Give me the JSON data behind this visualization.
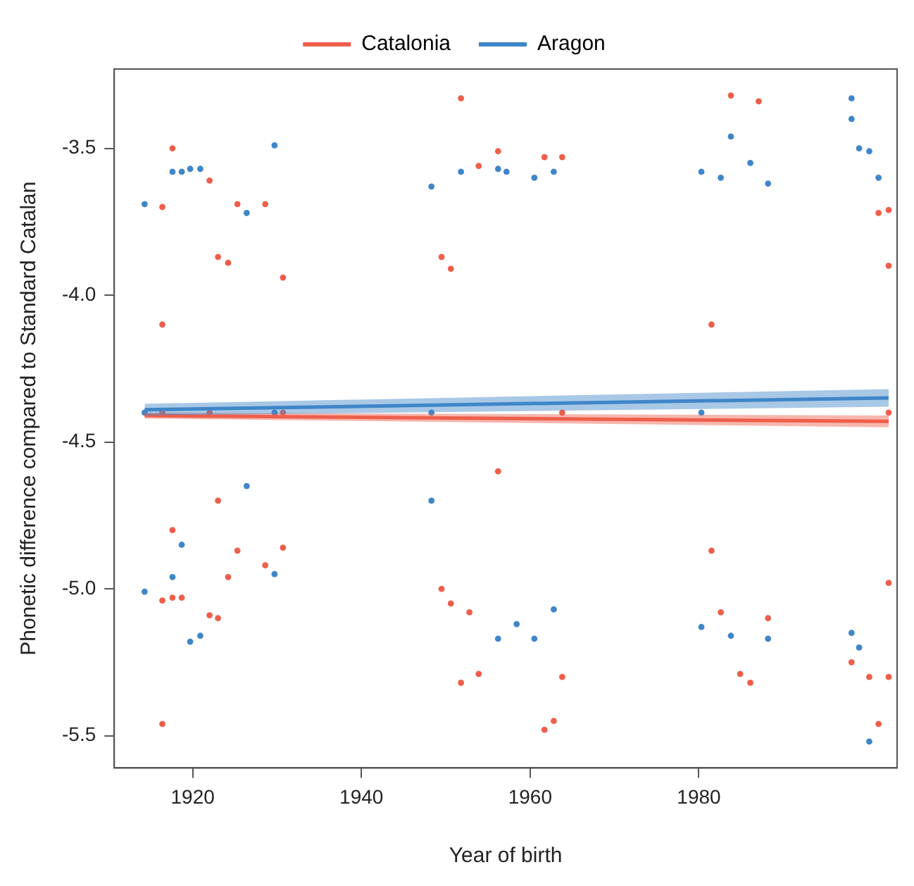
{
  "chart_data": {
    "type": "scatter",
    "xlabel": "Year of birth",
    "ylabel": "Phonetic difference compared to Standard Catalan",
    "xlim": [
      1910.7,
      2003.5
    ],
    "ylim": [
      -5.61,
      -3.23
    ],
    "xticks": [
      1920,
      1940,
      1960,
      1980
    ],
    "yticks": [
      {
        "value": -3.5,
        "label": "-3.5"
      },
      {
        "value": -4,
        "label": "-4.0"
      },
      {
        "value": -4.5,
        "label": "-4.5"
      },
      {
        "value": -5,
        "label": "-5.0"
      },
      {
        "value": -5.5,
        "label": "-5.5"
      }
    ],
    "legend": "top",
    "series": [
      {
        "type": "scatter",
        "marker": "circle",
        "color": "#ee5f4b",
        "x": [
          1916.4,
          1916.4,
          1916.4,
          1916.4,
          1916.4,
          1917.6,
          1917.6,
          1917.6,
          1918.7,
          1922.0,
          1922.0,
          1922.0,
          1923.0,
          1923.0,
          1923.0,
          1924.2,
          1924.2,
          1925.3,
          1925.3,
          1928.6,
          1928.6,
          1930.7,
          1930.7,
          1930.7,
          1949.5,
          1949.5,
          1950.6,
          1950.6,
          1951.8,
          1951.8,
          1952.8,
          1953.9,
          1953.9,
          1956.2,
          1956.2,
          1961.7,
          1961.7,
          1962.8,
          1963.8,
          1963.8,
          1963.8,
          1981.5,
          1981.5,
          1982.6,
          1983.8,
          1984.9,
          1986.1,
          1987.1,
          1988.2,
          1998.1,
          2000.2,
          2001.3,
          2001.3,
          2002.5,
          2002.5,
          2002.5,
          2002.5,
          2002.5
        ],
        "values": [
          -3.7,
          -4.1,
          -4.4,
          -5.04,
          -5.46,
          -3.5,
          -4.8,
          -5.03,
          -5.03,
          -3.61,
          -4.4,
          -5.09,
          -3.87,
          -4.7,
          -5.1,
          -3.89,
          -4.96,
          -3.69,
          -4.87,
          -3.69,
          -4.92,
          -3.94,
          -4.4,
          -4.86,
          -3.87,
          -5.0,
          -3.91,
          -5.05,
          -3.33,
          -5.32,
          -5.08,
          -3.56,
          -5.29,
          -3.51,
          -4.6,
          -3.53,
          -5.48,
          -5.45,
          -3.53,
          -4.4,
          -5.3,
          -4.1,
          -4.87,
          -5.08,
          -3.32,
          -5.29,
          -5.32,
          -3.34,
          -5.1,
          -5.25,
          -5.3,
          -3.72,
          -5.46,
          -3.71,
          -3.9,
          -4.4,
          -4.98,
          -5.3
        ]
      },
      {
        "type": "scatter",
        "marker": "circle",
        "color": "#3f86c8",
        "x": [
          1914.3,
          1914.3,
          1914.3,
          1917.6,
          1917.6,
          1918.7,
          1918.7,
          1919.7,
          1919.7,
          1920.9,
          1920.9,
          1926.4,
          1926.4,
          1929.7,
          1929.7,
          1929.7,
          1948.3,
          1948.3,
          1948.3,
          1951.8,
          1956.2,
          1956.2,
          1957.2,
          1958.4,
          1960.5,
          1960.5,
          1962.8,
          1962.8,
          1980.3,
          1980.3,
          1980.3,
          1982.6,
          1983.8,
          1983.8,
          1986.1,
          1988.2,
          1988.2,
          1998.1,
          1998.1,
          1998.1,
          1999.0,
          1999.0,
          2000.2,
          2000.2,
          2001.3
        ],
        "values": [
          -3.69,
          -4.4,
          -5.01,
          -3.58,
          -4.96,
          -3.58,
          -4.85,
          -3.57,
          -5.18,
          -3.57,
          -5.16,
          -3.72,
          -4.65,
          -3.49,
          -4.4,
          -4.95,
          -3.63,
          -4.4,
          -4.7,
          -3.58,
          -3.57,
          -5.17,
          -3.58,
          -5.12,
          -3.6,
          -5.17,
          -3.58,
          -5.07,
          -3.58,
          -4.4,
          -5.13,
          -3.6,
          -3.46,
          -5.16,
          -3.55,
          -3.62,
          -5.17,
          -3.33,
          -3.4,
          -5.15,
          -3.5,
          -5.2,
          -3.51,
          -5.52,
          -3.6
        ]
      },
      {
        "type": "line",
        "marker": "none",
        "name": "Catalonia",
        "color": "#ee5f4b",
        "x": [
          1914.3,
          2002.5
        ],
        "values": [
          -4.41,
          -4.43
        ],
        "lower": [
          -4.42,
          -4.45
        ],
        "upper": [
          -4.4,
          -4.41
        ]
      },
      {
        "type": "line",
        "marker": "none",
        "name": "Aragon",
        "color": "#3f86c8",
        "x": [
          1914.3,
          2002.5
        ],
        "values": [
          -4.39,
          -4.35
        ],
        "lower": [
          -4.41,
          -4.38
        ],
        "upper": [
          -4.37,
          -4.32
        ]
      }
    ]
  }
}
